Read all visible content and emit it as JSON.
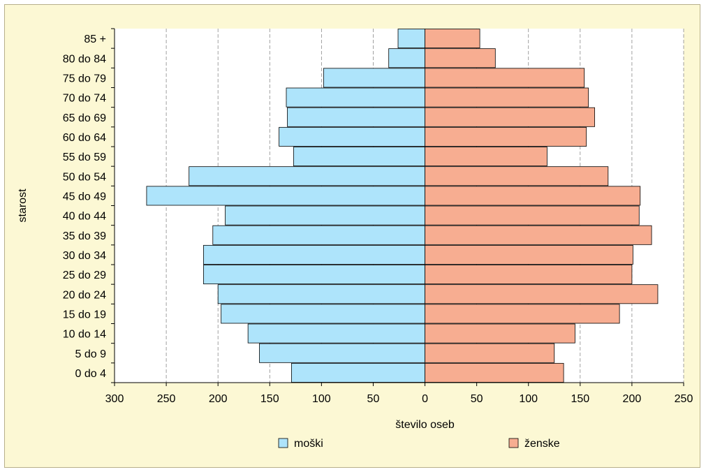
{
  "chart_data": {
    "type": "bar",
    "orientation": "horizontal",
    "categories": [
      "85 +",
      "80 do 84",
      "75 do 79",
      "70 do 74",
      "65 do 69",
      "60 do 64",
      "55 do 59",
      "50 do 54",
      "45 do 49",
      "40 do 44",
      "35 do 39",
      "30 do 34",
      "25 do 29",
      "20 do 24",
      "15 do 19",
      "10 do 14",
      "5 do 9",
      "0 do 4"
    ],
    "series": [
      {
        "name": "moški",
        "color": "#aee4fb",
        "values": [
          26,
          35,
          98,
          134,
          133,
          141,
          127,
          228,
          269,
          193,
          205,
          214,
          214,
          200,
          197,
          171,
          160,
          129
        ]
      },
      {
        "name": "ženske",
        "color": "#f7ad91",
        "values": [
          53,
          68,
          154,
          158,
          164,
          156,
          118,
          177,
          208,
          207,
          219,
          201,
          200,
          225,
          188,
          145,
          125,
          134
        ]
      }
    ],
    "x_ticks": [
      "300",
      "250",
      "200",
      "150",
      "100",
      "50",
      "0",
      "50",
      "100",
      "150",
      "200",
      "250"
    ],
    "xlim": [
      -300,
      250
    ],
    "xlabel": "število oseb",
    "ylabel": "starost",
    "grid": "vertical",
    "legend_position": "bottom"
  }
}
